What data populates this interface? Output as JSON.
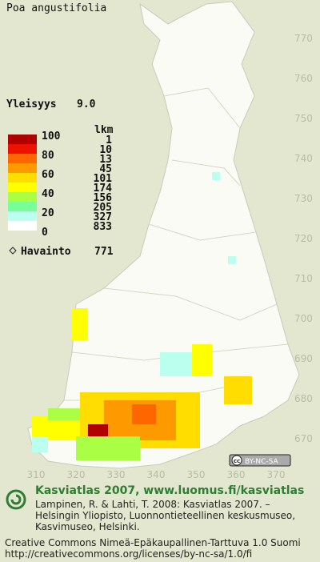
{
  "map": {
    "title": "Poa angustifolia",
    "frequency_label": "Yleisyys",
    "frequency_value": "9.0",
    "legend": {
      "count_header": "lkm",
      "scale_labels": [
        100,
        80,
        60,
        40,
        20,
        0
      ],
      "bands": [
        {
          "count": 1,
          "color": "#b00000"
        },
        {
          "count": 10,
          "color": "#ee1100"
        },
        {
          "count": 13,
          "color": "#ff6600"
        },
        {
          "count": 45,
          "color": "#ff9900"
        },
        {
          "count": 101,
          "color": "#ffdd00"
        },
        {
          "count": 174,
          "color": "#ffff00"
        },
        {
          "count": 156,
          "color": "#aaff44"
        },
        {
          "count": 205,
          "color": "#77ff99"
        },
        {
          "count": 327,
          "color": "#bbffee"
        },
        {
          "count": 833,
          "color": "#ffffff"
        }
      ],
      "observation_label": "Havainto",
      "observation_count": 771
    },
    "y_grid_labels": [
      770,
      760,
      750,
      740,
      730,
      720,
      710,
      700,
      690,
      680,
      670
    ],
    "x_grid_labels": [
      310,
      320,
      330,
      340,
      350,
      360,
      370
    ],
    "license_badge": {
      "icon": "cc",
      "text": "BY-NC-SA"
    }
  },
  "footer": {
    "heading": "Kasviatlas 2007, www.luomus.fi/kasviatlas",
    "citation": [
      "Lampinen, R. & Lahti, T. 2008: Kasviatlas 2007. –",
      "Helsingin Yliopisto, Luonnontieteellinen keskusmuseo,",
      "Kasvimuseo, Helsinki."
    ],
    "license": [
      "Creative Commons Nimeä-Epäkaupallinen-Tarttuva 1.0 Suomi",
      "http://creativecommons.org/licenses/by-nc-sa/1.0/fi"
    ]
  }
}
